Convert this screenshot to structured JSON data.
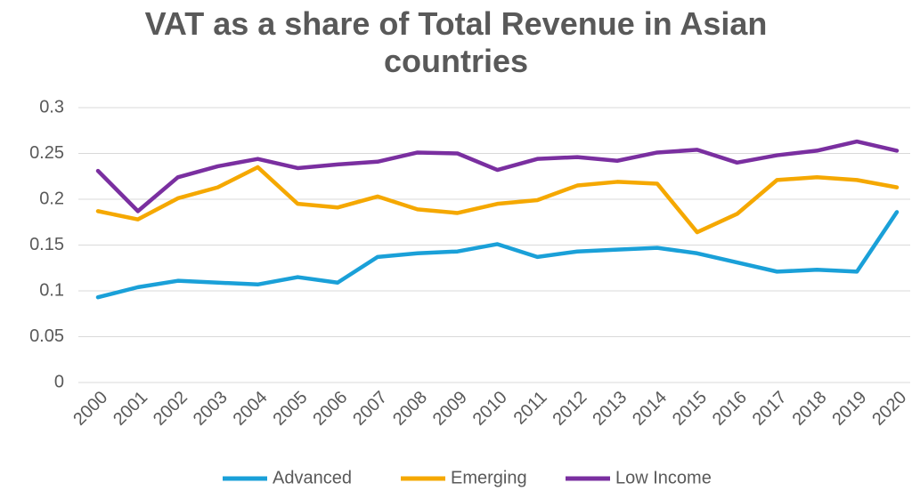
{
  "chart_data": {
    "type": "line",
    "title": "VAT as a share of Total Revenue in Asian countries",
    "categories": [
      "2000",
      "2001",
      "2002",
      "2003",
      "2004",
      "2005",
      "2006",
      "2007",
      "2008",
      "2009",
      "2010",
      "2011",
      "2012",
      "2013",
      "2014",
      "2015",
      "2016",
      "2017",
      "2018",
      "2019",
      "2020"
    ],
    "series": [
      {
        "name": "Advanced",
        "color": "#1aa0d8",
        "values": [
          0.093,
          0.104,
          0.111,
          0.109,
          0.107,
          0.115,
          0.109,
          0.137,
          0.141,
          0.143,
          0.151,
          0.137,
          0.143,
          0.145,
          0.147,
          0.141,
          0.131,
          0.121,
          0.123,
          0.121,
          0.186
        ]
      },
      {
        "name": "Emerging",
        "color": "#f5a800",
        "values": [
          0.187,
          0.178,
          0.201,
          0.213,
          0.235,
          0.195,
          0.191,
          0.203,
          0.189,
          0.185,
          0.195,
          0.199,
          0.215,
          0.219,
          0.217,
          0.164,
          0.184,
          0.221,
          0.224,
          0.221,
          0.213
        ]
      },
      {
        "name": "Low Income",
        "color": "#7a2fa0",
        "values": [
          0.231,
          0.187,
          0.224,
          0.236,
          0.244,
          0.234,
          0.238,
          0.241,
          0.251,
          0.25,
          0.232,
          0.244,
          0.246,
          0.242,
          0.251,
          0.254,
          0.24,
          0.248,
          0.253,
          0.263,
          0.253
        ]
      }
    ],
    "ylim": [
      0,
      0.3
    ],
    "yticks": [
      0,
      0.05,
      0.1,
      0.15,
      0.2,
      0.25,
      0.3
    ],
    "grid": true,
    "legend": "bottom"
  }
}
